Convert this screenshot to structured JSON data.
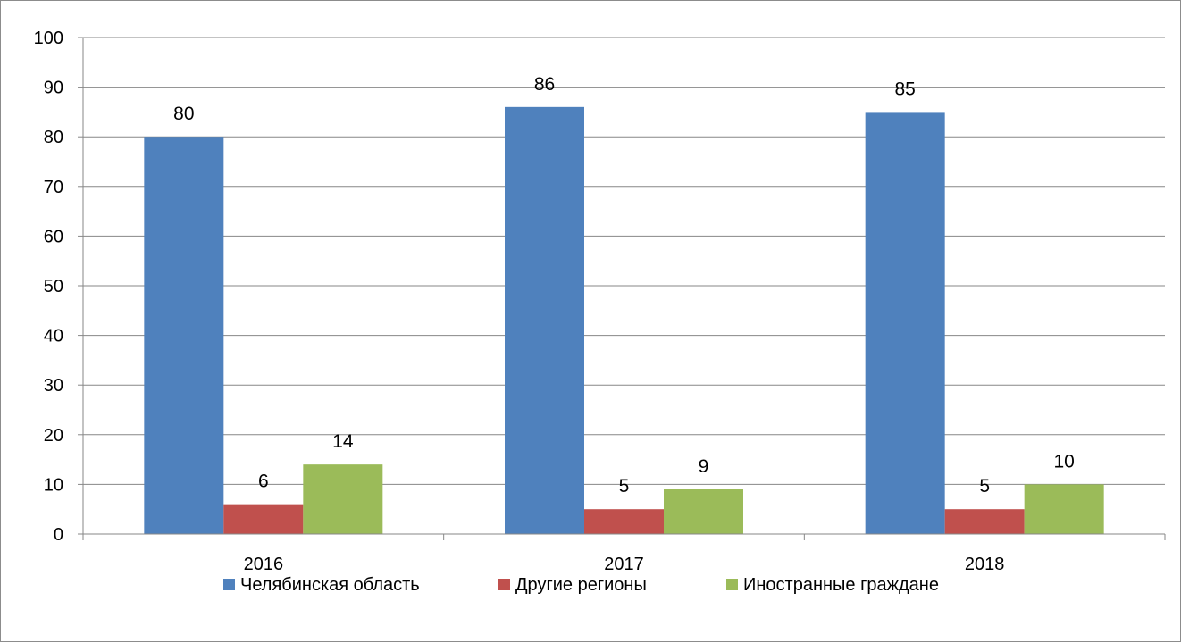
{
  "chart_data": {
    "type": "bar",
    "categories": [
      "2016",
      "2017",
      "2018"
    ],
    "series": [
      {
        "name": "Челябинская область",
        "values": [
          80,
          86,
          85
        ],
        "color": "#4f81bd"
      },
      {
        "name": "Другие регионы",
        "values": [
          6,
          5,
          5
        ],
        "color": "#c0504d"
      },
      {
        "name": "Иностранные граждане",
        "values": [
          14,
          9,
          10
        ],
        "color": "#9bbb59"
      }
    ],
    "ylim": [
      0,
      100
    ],
    "yticks": [
      0,
      10,
      20,
      30,
      40,
      50,
      60,
      70,
      80,
      90,
      100
    ],
    "grid": true,
    "legend_position": "bottom",
    "title": "",
    "xlabel": "",
    "ylabel": ""
  }
}
